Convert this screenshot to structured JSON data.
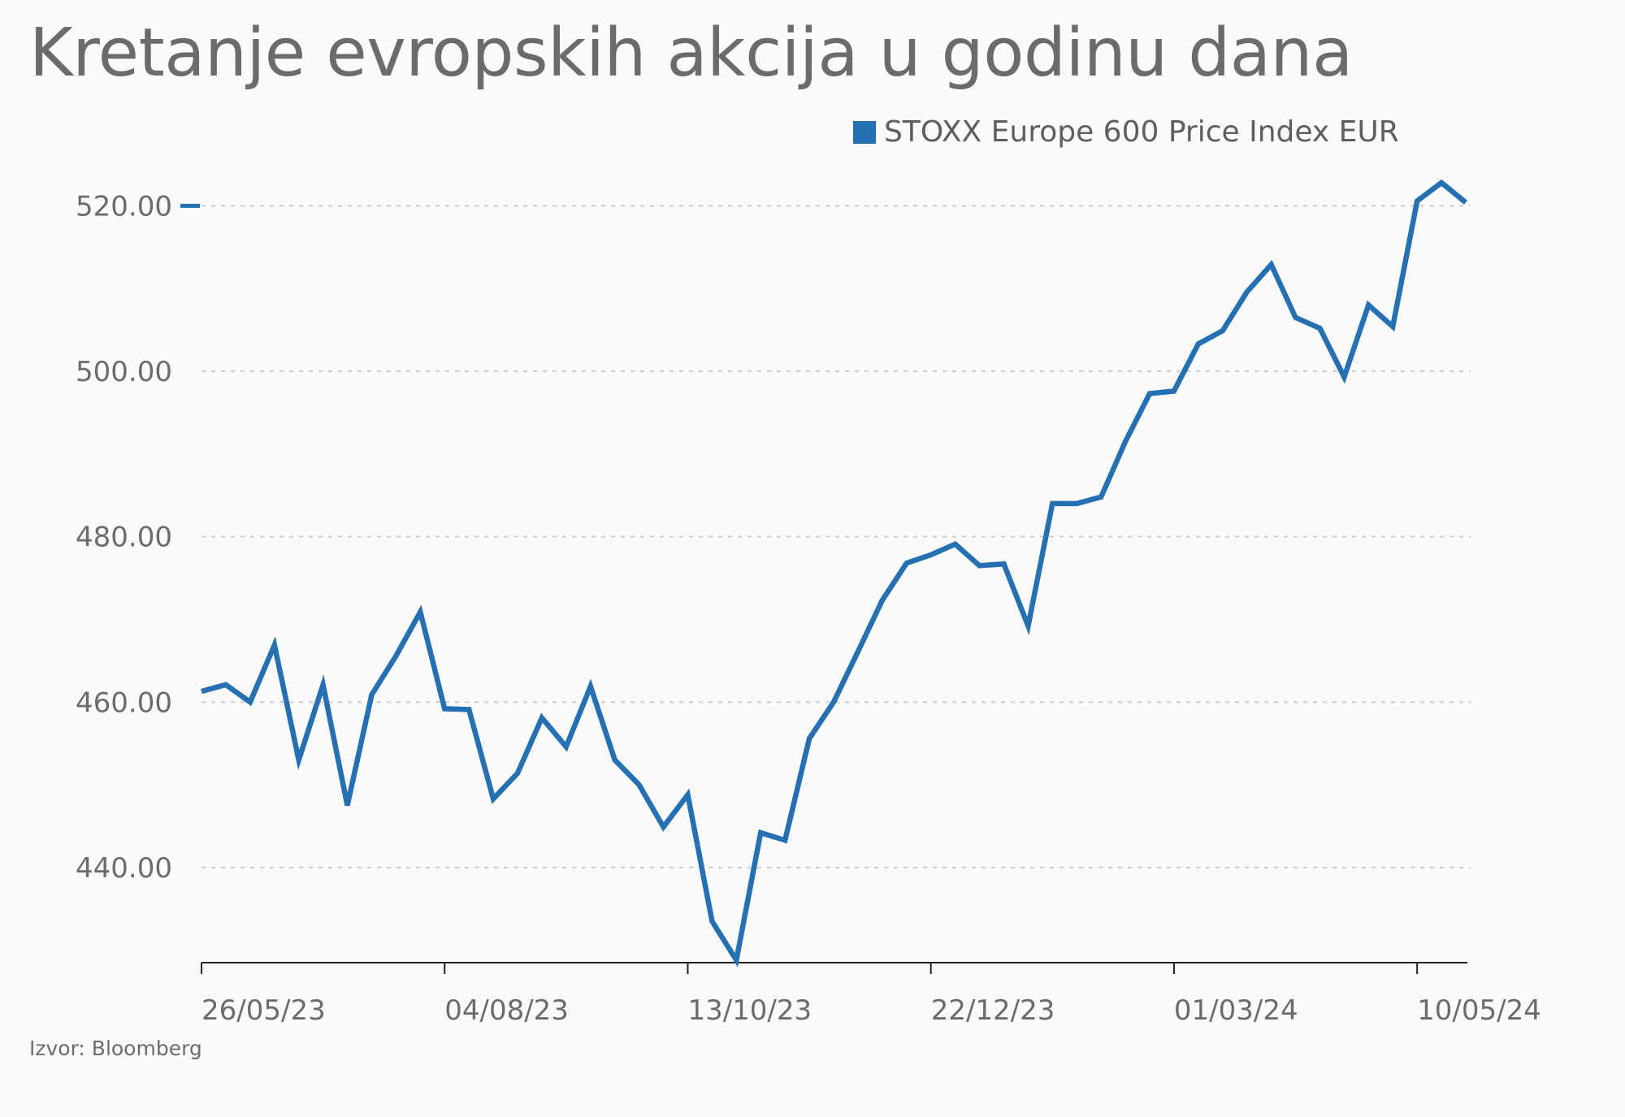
{
  "title": "Kretanje evropskih akcija u godinu dana",
  "source": "Izvor: Bloomberg",
  "colors": {
    "series": "#2470b3",
    "grid": "#cccccc",
    "axis": "#222222",
    "text": "#6b6b6b"
  },
  "chart_data": {
    "type": "line",
    "ylim": [
      428.5,
      522
    ],
    "xlim": [
      0,
      52
    ],
    "y_ticks": [
      {
        "value": 440,
        "label": "440.00"
      },
      {
        "value": 460,
        "label": "460.00"
      },
      {
        "value": 480,
        "label": "480.00"
      },
      {
        "value": 500,
        "label": "500.00"
      },
      {
        "value": 520,
        "label": "520.00"
      }
    ],
    "x_ticks": [
      {
        "value": 0,
        "label": "26/05/23"
      },
      {
        "value": 10,
        "label": "04/08/23"
      },
      {
        "value": 20,
        "label": "13/10/23"
      },
      {
        "value": 30,
        "label": "22/12/23"
      },
      {
        "value": 40,
        "label": "01/03/24"
      },
      {
        "value": 50,
        "label": "10/05/24"
      }
    ],
    "grid": true,
    "legend_position": "top-right",
    "last_value_marker": 520,
    "series": [
      {
        "name": "STOXX Europe 600 Price Index EUR",
        "x": [
          0,
          1,
          2,
          3,
          4,
          5,
          6,
          7,
          8,
          9,
          10,
          11,
          12,
          13,
          14,
          15,
          16,
          17,
          18,
          19,
          20,
          21,
          22,
          23,
          24,
          25,
          26,
          27,
          28,
          29,
          30,
          31,
          32,
          33,
          34,
          35,
          36,
          37,
          38,
          39,
          40,
          41,
          42,
          43,
          44,
          45,
          46,
          47,
          48,
          49,
          50,
          51,
          52
        ],
        "values": [
          461.3,
          462.1,
          460,
          466.9,
          453,
          462.1,
          447.5,
          460.9,
          465.6,
          470.9,
          459.2,
          459.1,
          448.3,
          451.4,
          458.1,
          454.6,
          461.9,
          453,
          450,
          444.9,
          448.8,
          433.5,
          428.8,
          444.2,
          443.3,
          455.6,
          460,
          466.1,
          472.3,
          476.8,
          477.8,
          479.1,
          476.5,
          476.7,
          469.2,
          484,
          484,
          484.8,
          491.5,
          497.3,
          497.6,
          503.3,
          504.9,
          509.6,
          512.9,
          506.5,
          505.2,
          499.3,
          508,
          505.4,
          520.6,
          522.8,
          520.4
        ]
      }
    ]
  }
}
